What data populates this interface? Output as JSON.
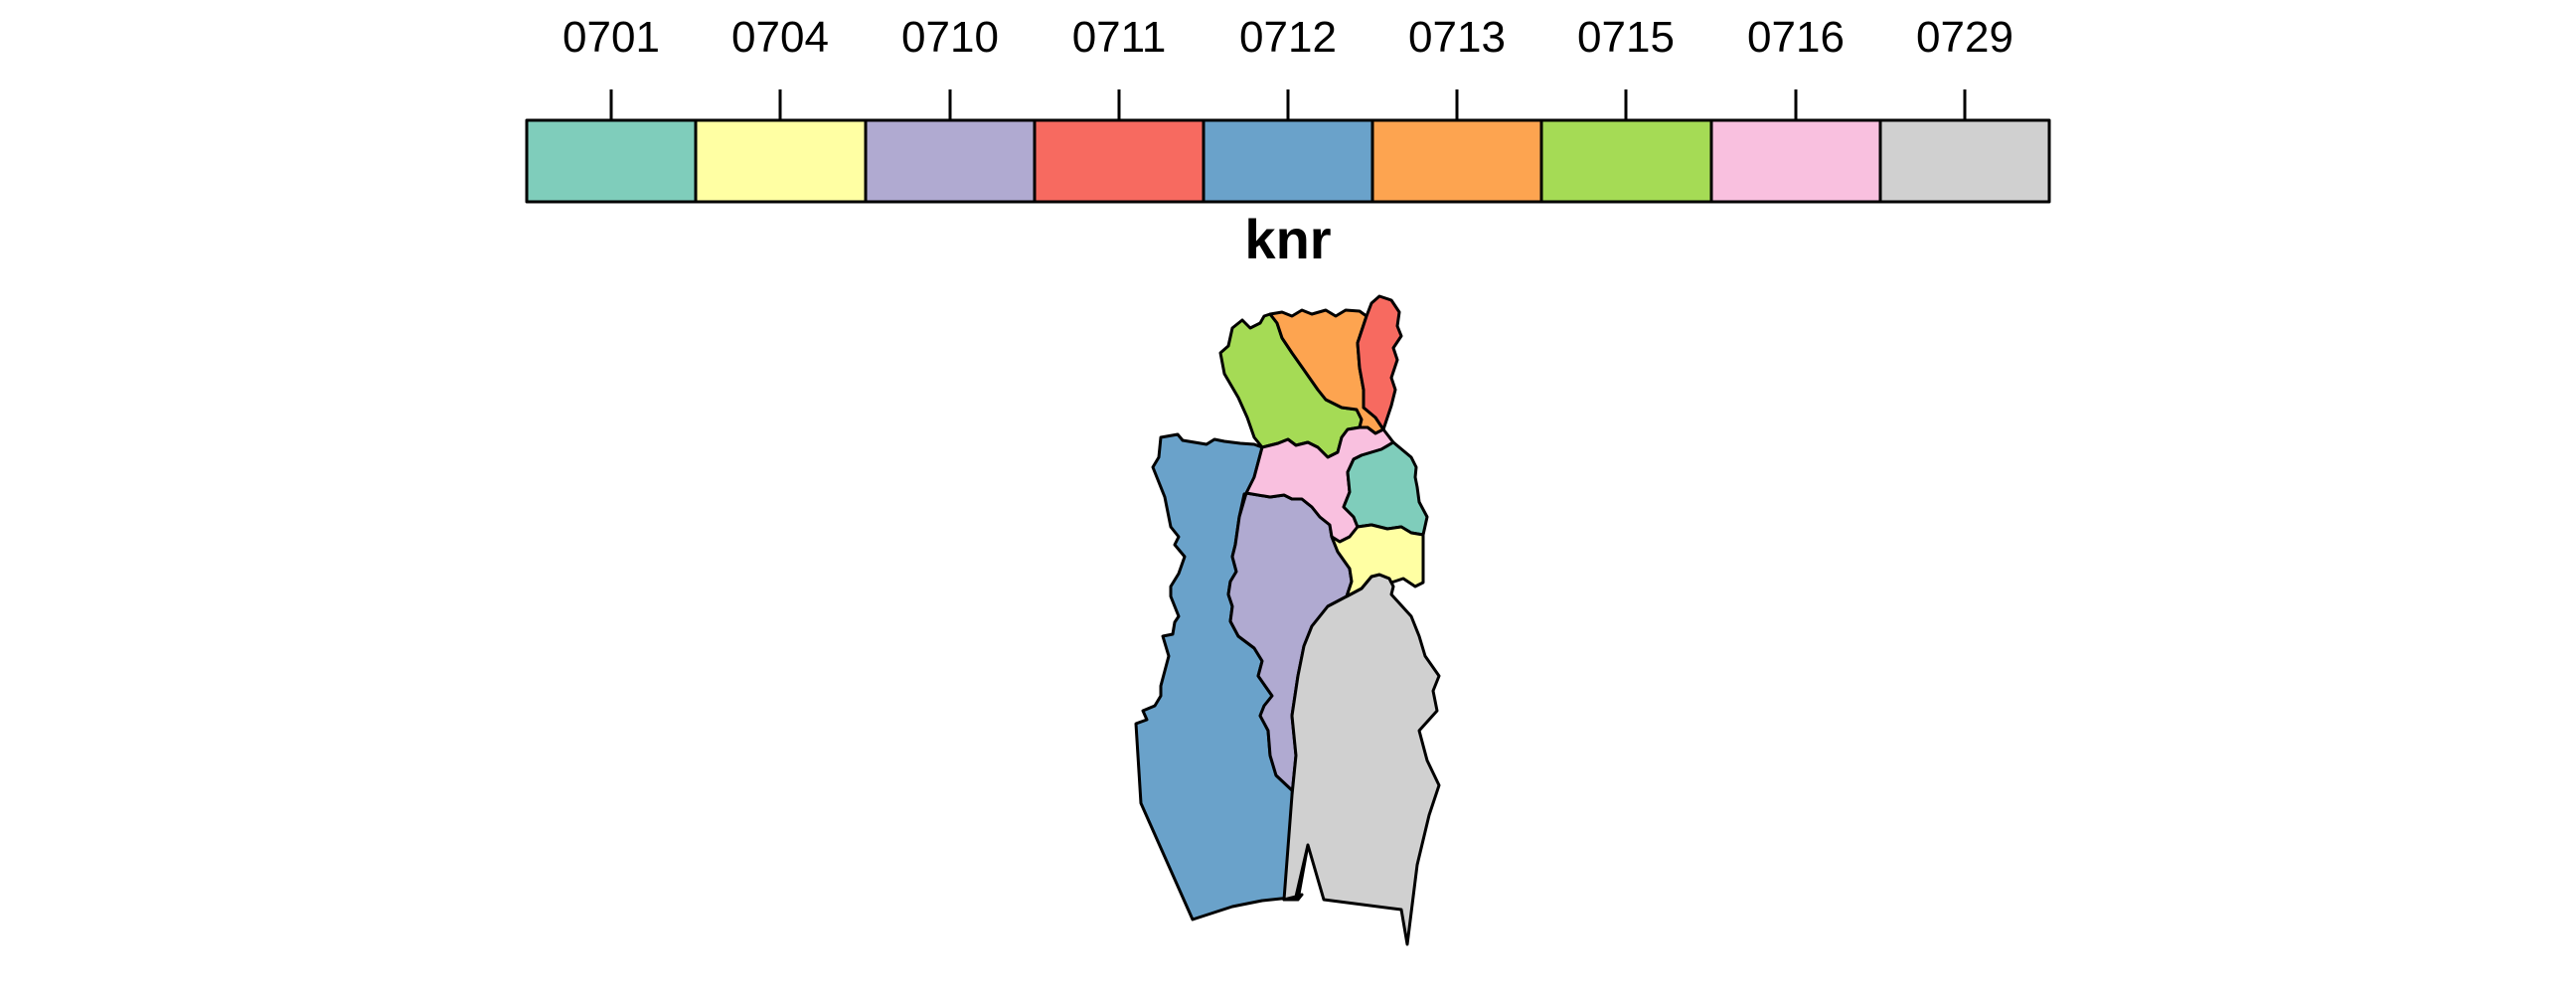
{
  "legend": {
    "title": "knr",
    "entries": [
      {
        "code": "0701",
        "color": "#7fcdbb"
      },
      {
        "code": "0704",
        "color": "#ffffa3"
      },
      {
        "code": "0710",
        "color": "#b0aad1"
      },
      {
        "code": "0711",
        "color": "#f76a60"
      },
      {
        "code": "0712",
        "color": "#6aa2ca"
      },
      {
        "code": "0713",
        "color": "#fda450"
      },
      {
        "code": "0715",
        "color": "#a5db55"
      },
      {
        "code": "0716",
        "color": "#f9c0df"
      },
      {
        "code": "0729",
        "color": "#d0d0d0"
      }
    ]
  },
  "map": {
    "regions": [
      {
        "code": "0712",
        "color": "#6aa2ca"
      },
      {
        "code": "0710",
        "color": "#b0aad1"
      },
      {
        "code": "0729",
        "color": "#d0d0d0"
      },
      {
        "code": "0715",
        "color": "#a5db55"
      },
      {
        "code": "0713",
        "color": "#fda450"
      },
      {
        "code": "0711",
        "color": "#f76a60"
      },
      {
        "code": "0716",
        "color": "#f9c0df"
      },
      {
        "code": "0701",
        "color": "#7fcdbb"
      },
      {
        "code": "0704",
        "color": "#ffffa3"
      }
    ]
  }
}
